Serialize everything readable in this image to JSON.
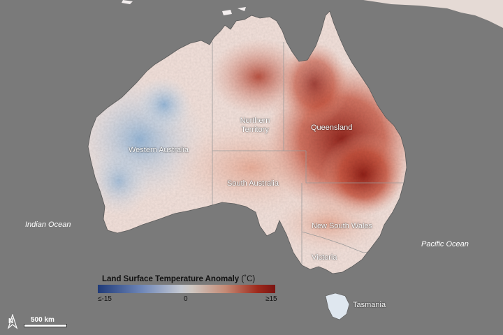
{
  "map": {
    "regions": {
      "western_australia": "Western Australia",
      "northern_territory_line1": "Northern",
      "northern_territory_line2": "Territory",
      "queensland": "Queensland",
      "south_australia": "South Australia",
      "new_south_wales": "New South Wales",
      "victoria": "Victoria",
      "tasmania": "Tasmania"
    },
    "oceans": {
      "indian": "Indian Ocean",
      "pacific": "Pacific Ocean"
    },
    "colors": {
      "ocean": "#7a7a7a",
      "cold": "#1f3a78",
      "neutral": "#f2f2f2",
      "warm": "#9e2a1c"
    }
  },
  "legend": {
    "title": "Land Surface Temperature Anomaly",
    "unit": "(˚C)",
    "min_label": "≤-15",
    "mid_label": "0",
    "max_label": "≥15",
    "min_value": -15,
    "max_value": 15
  },
  "scale_bar": {
    "label": "500 km"
  },
  "north_arrow": {
    "label": "N",
    "icon": "north-arrow-icon"
  }
}
